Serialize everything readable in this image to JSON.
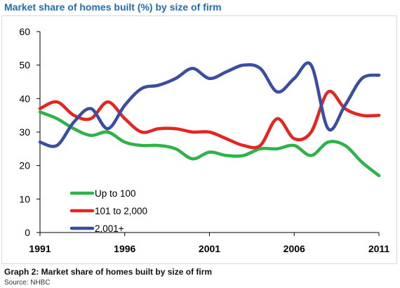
{
  "chart_data": {
    "type": "line",
    "title": "Market share of homes built (%) by size of firm",
    "xlabel": "",
    "ylabel": "",
    "xlim": [
      1991,
      2011
    ],
    "ylim": [
      0,
      60
    ],
    "yticks": [
      0,
      10,
      20,
      30,
      40,
      50,
      60
    ],
    "xticks": [
      1991,
      1996,
      2001,
      2006,
      2011
    ],
    "grid": false,
    "legend_position": "bottom-left",
    "series": [
      {
        "name": "Up to 100",
        "color": "#2eb348",
        "x": [
          1991,
          1992,
          1993,
          1994,
          1995,
          1996,
          1997,
          1998,
          1999,
          2000,
          2001,
          2002,
          2003,
          2004,
          2005,
          2006,
          2007,
          2008,
          2009,
          2010,
          2011
        ],
        "values": [
          36,
          34,
          31,
          29,
          30,
          27,
          26,
          26,
          25,
          22,
          24,
          23,
          23,
          25,
          25,
          26,
          23,
          27,
          26,
          21,
          17
        ]
      },
      {
        "name": "101 to 2,000",
        "color": "#e32620",
        "x": [
          1991,
          1992,
          1993,
          1994,
          1995,
          1996,
          1997,
          1998,
          1999,
          2000,
          2001,
          2002,
          2003,
          2004,
          2005,
          2006,
          2007,
          2008,
          2009,
          2010,
          2011
        ],
        "values": [
          37,
          39,
          35,
          34,
          39,
          34,
          30,
          31,
          31,
          30,
          30,
          28,
          26,
          26,
          34,
          28,
          30,
          42,
          37,
          35,
          35
        ]
      },
      {
        "name": "2,001+",
        "color": "#3b4da1",
        "x": [
          1991,
          1992,
          1993,
          1994,
          1995,
          1996,
          1997,
          1998,
          1999,
          2000,
          2001,
          2002,
          2003,
          2004,
          2005,
          2006,
          2007,
          2008,
          2009,
          2010,
          2011
        ],
        "values": [
          27,
          26,
          33,
          37,
          31,
          38,
          43,
          44,
          46,
          49,
          46,
          48,
          50,
          49,
          42,
          46,
          50,
          31,
          38,
          46,
          47
        ]
      }
    ]
  },
  "caption": "Graph 2: Market share of homes built by size of firm",
  "source": "Source: NHBC"
}
